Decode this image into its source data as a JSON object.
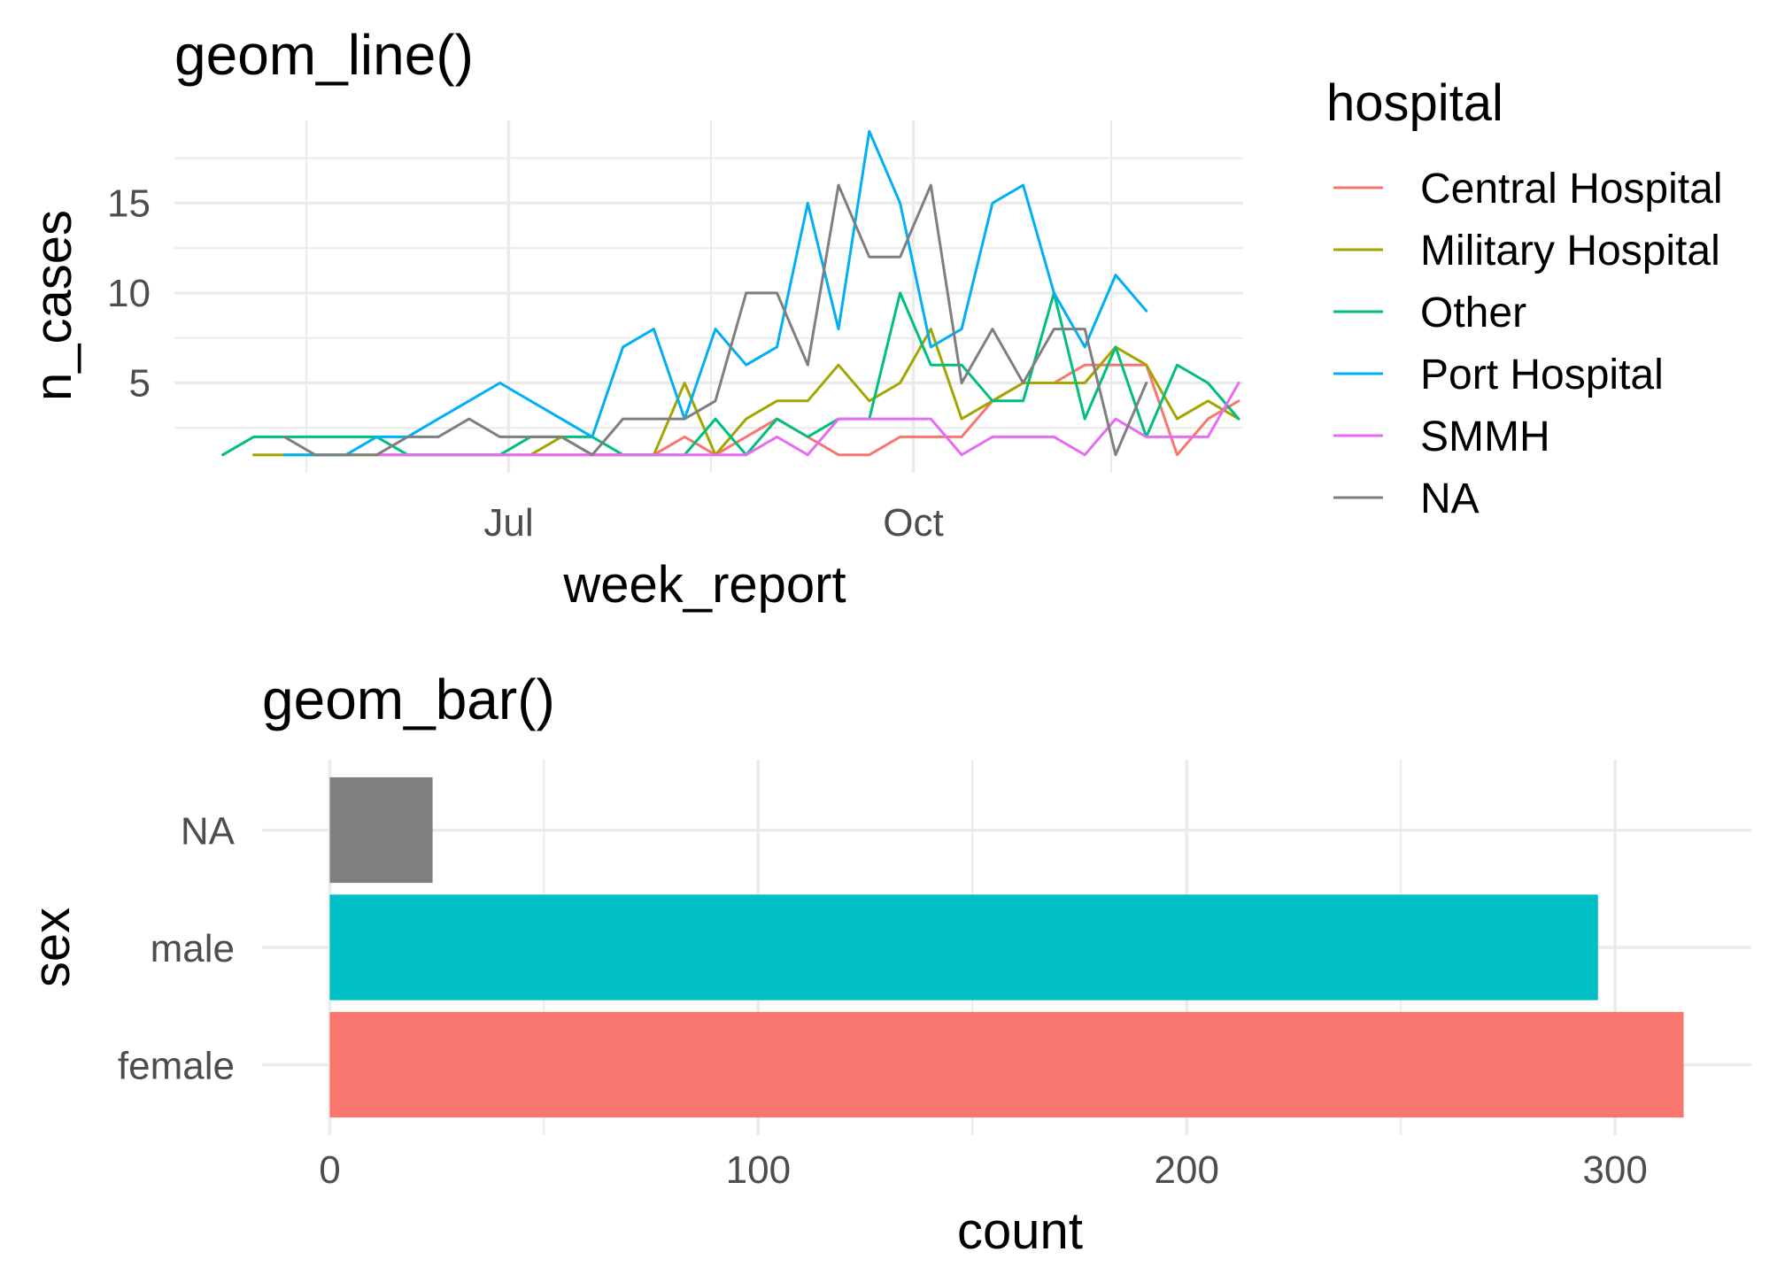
{
  "chart_data": [
    {
      "type": "line",
      "title": "geom_line()",
      "xlabel": "week_report",
      "ylabel": "n_cases",
      "x_ticks": [
        {
          "date": "2014-07-01",
          "label": "Jul"
        },
        {
          "date": "2014-10-01",
          "label": "Oct"
        }
      ],
      "x_range": [
        "2014-04-16",
        "2014-12-15"
      ],
      "y_ticks": [
        5,
        10,
        15
      ],
      "ylim": [
        0,
        19.6
      ],
      "grid": true,
      "legend": {
        "title": "hospital",
        "position": "right",
        "entries": [
          "Central Hospital",
          "Military Hospital",
          "Other",
          "Port Hospital",
          "SMMH",
          "NA"
        ]
      },
      "series": [
        {
          "name": "Central Hospital",
          "color": "#F8766D",
          "points": [
            [
              "2014-07-06",
              1
            ],
            [
              "2014-07-13",
              1
            ],
            [
              "2014-07-20",
              1
            ],
            [
              "2014-07-27",
              1
            ],
            [
              "2014-08-03",
              1
            ],
            [
              "2014-08-10",
              2
            ],
            [
              "2014-08-17",
              1
            ],
            [
              "2014-08-24",
              2
            ],
            [
              "2014-08-31",
              3
            ],
            [
              "2014-09-07",
              2
            ],
            [
              "2014-09-14",
              1
            ],
            [
              "2014-09-21",
              1
            ],
            [
              "2014-09-28",
              2
            ],
            [
              "2014-10-05",
              2
            ],
            [
              "2014-10-12",
              2
            ],
            [
              "2014-10-19",
              4
            ],
            [
              "2014-10-26",
              5
            ],
            [
              "2014-11-02",
              5
            ],
            [
              "2014-11-09",
              6
            ],
            [
              "2014-11-16",
              6
            ],
            [
              "2014-11-23",
              6
            ],
            [
              "2014-11-30",
              1
            ],
            [
              "2014-12-07",
              3
            ],
            [
              "2014-12-14",
              4
            ]
          ]
        },
        {
          "name": "Military Hospital",
          "color": "#A3A500",
          "points": [
            [
              "2014-05-04",
              1
            ],
            [
              "2014-05-11",
              1
            ],
            [
              "2014-05-18",
              1
            ],
            [
              "2014-05-25",
              1
            ],
            [
              "2014-06-01",
              1
            ],
            [
              "2014-06-08",
              1
            ],
            [
              "2014-06-15",
              1
            ],
            [
              "2014-06-22",
              1
            ],
            [
              "2014-06-29",
              1
            ],
            [
              "2014-07-06",
              1
            ],
            [
              "2014-07-13",
              2
            ],
            [
              "2014-07-20",
              1
            ],
            [
              "2014-07-27",
              1
            ],
            [
              "2014-08-03",
              1
            ],
            [
              "2014-08-10",
              5
            ],
            [
              "2014-08-17",
              1
            ],
            [
              "2014-08-24",
              3
            ],
            [
              "2014-08-31",
              4
            ],
            [
              "2014-09-07",
              4
            ],
            [
              "2014-09-14",
              6
            ],
            [
              "2014-09-21",
              4
            ],
            [
              "2014-09-28",
              5
            ],
            [
              "2014-10-05",
              8
            ],
            [
              "2014-10-12",
              3
            ],
            [
              "2014-10-19",
              4
            ],
            [
              "2014-10-26",
              5
            ],
            [
              "2014-11-02",
              5
            ],
            [
              "2014-11-09",
              5
            ],
            [
              "2014-11-16",
              7
            ],
            [
              "2014-11-23",
              6
            ],
            [
              "2014-11-30",
              3
            ],
            [
              "2014-12-07",
              4
            ],
            [
              "2014-12-14",
              3
            ]
          ]
        },
        {
          "name": "Other",
          "color": "#00BF7D",
          "points": [
            [
              "2014-04-27",
              1
            ],
            [
              "2014-05-04",
              2
            ],
            [
              "2014-05-11",
              2
            ],
            [
              "2014-05-18",
              2
            ],
            [
              "2014-05-25",
              2
            ],
            [
              "2014-06-01",
              2
            ],
            [
              "2014-06-08",
              1
            ],
            [
              "2014-06-15",
              1
            ],
            [
              "2014-06-22",
              1
            ],
            [
              "2014-06-29",
              1
            ],
            [
              "2014-07-06",
              2
            ],
            [
              "2014-07-13",
              2
            ],
            [
              "2014-07-20",
              2
            ],
            [
              "2014-07-27",
              1
            ],
            [
              "2014-08-03",
              1
            ],
            [
              "2014-08-10",
              1
            ],
            [
              "2014-08-17",
              3
            ],
            [
              "2014-08-24",
              1
            ],
            [
              "2014-08-31",
              3
            ],
            [
              "2014-09-07",
              2
            ],
            [
              "2014-09-14",
              3
            ],
            [
              "2014-09-21",
              3
            ],
            [
              "2014-09-28",
              10
            ],
            [
              "2014-10-05",
              6
            ],
            [
              "2014-10-12",
              6
            ],
            [
              "2014-10-19",
              4
            ],
            [
              "2014-10-26",
              4
            ],
            [
              "2014-11-02",
              10
            ],
            [
              "2014-11-09",
              3
            ],
            [
              "2014-11-16",
              7
            ],
            [
              "2014-11-23",
              2
            ],
            [
              "2014-11-30",
              6
            ],
            [
              "2014-12-07",
              5
            ],
            [
              "2014-12-14",
              3
            ]
          ]
        },
        {
          "name": "Port Hospital",
          "color": "#00B0F6",
          "points": [
            [
              "2014-05-11",
              1
            ],
            [
              "2014-05-18",
              1
            ],
            [
              "2014-05-25",
              1
            ],
            [
              "2014-06-01",
              2
            ],
            [
              "2014-06-08",
              2
            ],
            [
              "2014-06-15",
              3
            ],
            [
              "2014-06-22",
              4
            ],
            [
              "2014-06-29",
              5
            ],
            [
              "2014-07-06",
              4
            ],
            [
              "2014-07-13",
              3
            ],
            [
              "2014-07-20",
              2
            ],
            [
              "2014-07-27",
              7
            ],
            [
              "2014-08-03",
              8
            ],
            [
              "2014-08-10",
              3
            ],
            [
              "2014-08-17",
              8
            ],
            [
              "2014-08-24",
              6
            ],
            [
              "2014-08-31",
              7
            ],
            [
              "2014-09-07",
              15
            ],
            [
              "2014-09-14",
              8
            ],
            [
              "2014-09-21",
              19
            ],
            [
              "2014-09-28",
              15
            ],
            [
              "2014-10-05",
              7
            ],
            [
              "2014-10-12",
              8
            ],
            [
              "2014-10-19",
              15
            ],
            [
              "2014-10-26",
              16
            ],
            [
              "2014-11-02",
              10
            ],
            [
              "2014-11-09",
              7
            ],
            [
              "2014-11-16",
              11
            ],
            [
              "2014-11-23",
              9
            ]
          ]
        },
        {
          "name": "SMMH",
          "color": "#E76BF3",
          "points": [
            [
              "2014-06-01",
              1
            ],
            [
              "2014-06-08",
              1
            ],
            [
              "2014-06-15",
              1
            ],
            [
              "2014-06-22",
              1
            ],
            [
              "2014-06-29",
              1
            ],
            [
              "2014-07-06",
              1
            ],
            [
              "2014-07-13",
              1
            ],
            [
              "2014-07-20",
              1
            ],
            [
              "2014-07-27",
              1
            ],
            [
              "2014-08-03",
              1
            ],
            [
              "2014-08-10",
              1
            ],
            [
              "2014-08-17",
              1
            ],
            [
              "2014-08-24",
              1
            ],
            [
              "2014-08-31",
              2
            ],
            [
              "2014-09-07",
              1
            ],
            [
              "2014-09-14",
              3
            ],
            [
              "2014-09-21",
              3
            ],
            [
              "2014-09-28",
              3
            ],
            [
              "2014-10-05",
              3
            ],
            [
              "2014-10-12",
              1
            ],
            [
              "2014-10-19",
              2
            ],
            [
              "2014-10-26",
              2
            ],
            [
              "2014-11-02",
              2
            ],
            [
              "2014-11-09",
              1
            ],
            [
              "2014-11-16",
              3
            ],
            [
              "2014-11-23",
              2
            ],
            [
              "2014-11-30",
              2
            ],
            [
              "2014-12-07",
              2
            ],
            [
              "2014-12-14",
              5
            ]
          ]
        },
        {
          "name": "NA",
          "color": "#7F7F7F",
          "points": [
            [
              "2014-05-11",
              2
            ],
            [
              "2014-05-18",
              1
            ],
            [
              "2014-05-25",
              1
            ],
            [
              "2014-06-01",
              1
            ],
            [
              "2014-06-08",
              2
            ],
            [
              "2014-06-15",
              2
            ],
            [
              "2014-06-22",
              3
            ],
            [
              "2014-06-29",
              2
            ],
            [
              "2014-07-06",
              2
            ],
            [
              "2014-07-13",
              2
            ],
            [
              "2014-07-20",
              1
            ],
            [
              "2014-07-27",
              3
            ],
            [
              "2014-08-03",
              3
            ],
            [
              "2014-08-10",
              3
            ],
            [
              "2014-08-17",
              4
            ],
            [
              "2014-08-24",
              10
            ],
            [
              "2014-08-31",
              10
            ],
            [
              "2014-09-07",
              6
            ],
            [
              "2014-09-14",
              16
            ],
            [
              "2014-09-21",
              12
            ],
            [
              "2014-09-28",
              12
            ],
            [
              "2014-10-05",
              16
            ],
            [
              "2014-10-12",
              5
            ],
            [
              "2014-10-19",
              8
            ],
            [
              "2014-10-26",
              5
            ],
            [
              "2014-11-02",
              8
            ],
            [
              "2014-11-09",
              8
            ],
            [
              "2014-11-16",
              1
            ],
            [
              "2014-11-23",
              5
            ]
          ]
        }
      ]
    },
    {
      "type": "bar",
      "orientation": "horizontal",
      "title": "geom_bar()",
      "xlabel": "count",
      "ylabel": "sex",
      "categories": [
        "female",
        "male",
        "NA"
      ],
      "values": [
        316,
        296,
        24
      ],
      "colors": [
        "#F8766D",
        "#00BFC4",
        "#7F7F7F"
      ],
      "x_ticks": [
        0,
        100,
        200,
        300
      ],
      "xlim": [
        -15.8,
        331.8
      ],
      "grid": true
    }
  ]
}
